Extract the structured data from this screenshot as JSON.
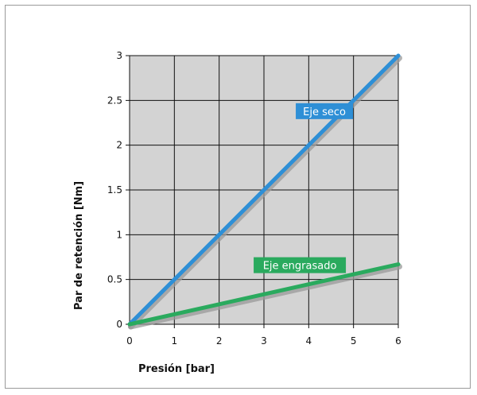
{
  "chart_data": {
    "type": "line",
    "xlabel": "Presión [bar]",
    "ylabel": "Par de retención [Nm]",
    "xlim": [
      0,
      6
    ],
    "ylim": [
      0,
      3
    ],
    "x_ticks": [
      "0",
      "1",
      "2",
      "3",
      "4",
      "5",
      "6"
    ],
    "y_ticks": [
      "0",
      "0.5",
      "1",
      "1.5",
      "2",
      "2.5",
      "3"
    ],
    "grid": true,
    "series": [
      {
        "name": "Eje seco",
        "x": [
          0,
          6
        ],
        "y": [
          0,
          3
        ],
        "color": "#2e8fd6"
      },
      {
        "name": "Eje engrasado",
        "x": [
          0,
          6
        ],
        "y": [
          0,
          0.67
        ],
        "color": "#2aaa5e"
      }
    ],
    "plot_background": "#d3d3d3"
  }
}
